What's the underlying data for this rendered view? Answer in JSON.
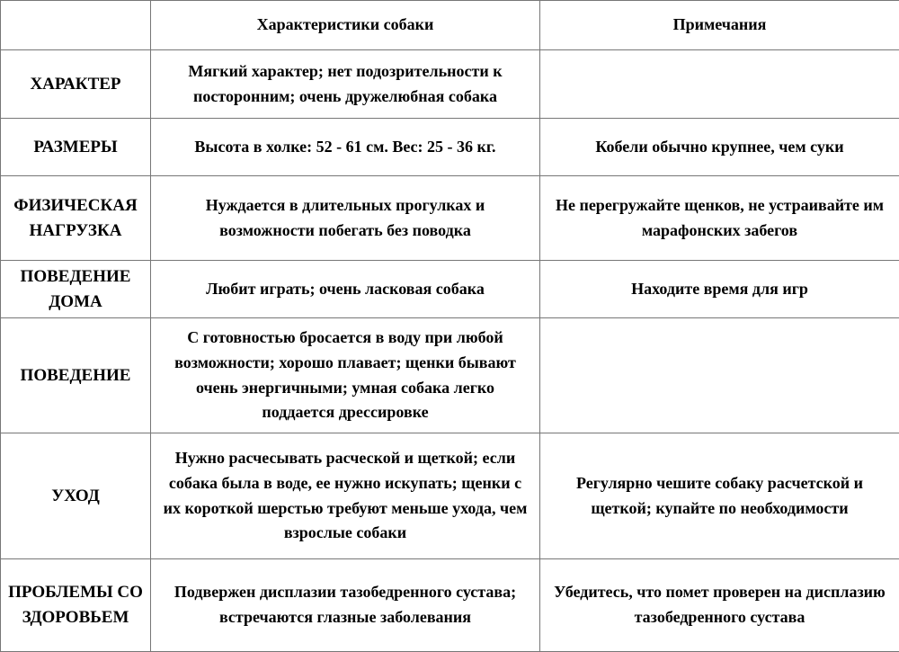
{
  "table": {
    "title_semantic": "dog-breed-characteristics-table",
    "columns": {
      "row_header": "",
      "characteristics": "Характеристики собаки",
      "notes": "Примечания"
    },
    "rows": [
      {
        "header": "ХАРАКТЕР",
        "characteristics": "Мягкий характер; нет подозрительности к посторонним; очень дружелюбная собака",
        "notes": ""
      },
      {
        "header": "РАЗМЕРЫ",
        "characteristics": "Высота в холке: 52 - 61 см. Вес: 25 - 36 кг.",
        "notes": "Кобели обычно крупнее, чем суки"
      },
      {
        "header": "ФИЗИЧЕСКАЯ НАГРУЗКА",
        "characteristics": "Нуждается в длительных прогулках и возможности побегать без поводка",
        "notes": "Не перегружайте щенков, не устраивайте им марафонских забегов"
      },
      {
        "header": "ПОВЕДЕНИЕ ДОМА",
        "characteristics": "Любит играть; очень ласковая собака",
        "notes": "Находите время для игр"
      },
      {
        "header": "ПОВЕДЕНИЕ",
        "characteristics": "С готовностью бросается в воду при любой возможности; хорошо плавает; щенки бывают очень энергичными; умная собака легко поддается дрессировке",
        "notes": ""
      },
      {
        "header": "УХОД",
        "characteristics": "Нужно расчесывать расческой и щеткой; если собака была в воде, ее нужно искупать; щенки с их короткой шерстью требуют меньше ухода, чем взрослые собаки",
        "notes": "Регулярно чешите собаку расчетской и щеткой; купайте по необходимости"
      },
      {
        "header": "ПРОБЛЕМЫ СО ЗДОРОВЬЕМ",
        "characteristics": "Подвержен дисплазии тазобедренного сустава; встречаются глазные заболевания",
        "notes": "Убедитесь, что помет проверен на дисплазию тазобедренного сустава"
      }
    ],
    "colors": {
      "border": "#777777",
      "text": "#000000",
      "background": "#ffffff"
    }
  }
}
